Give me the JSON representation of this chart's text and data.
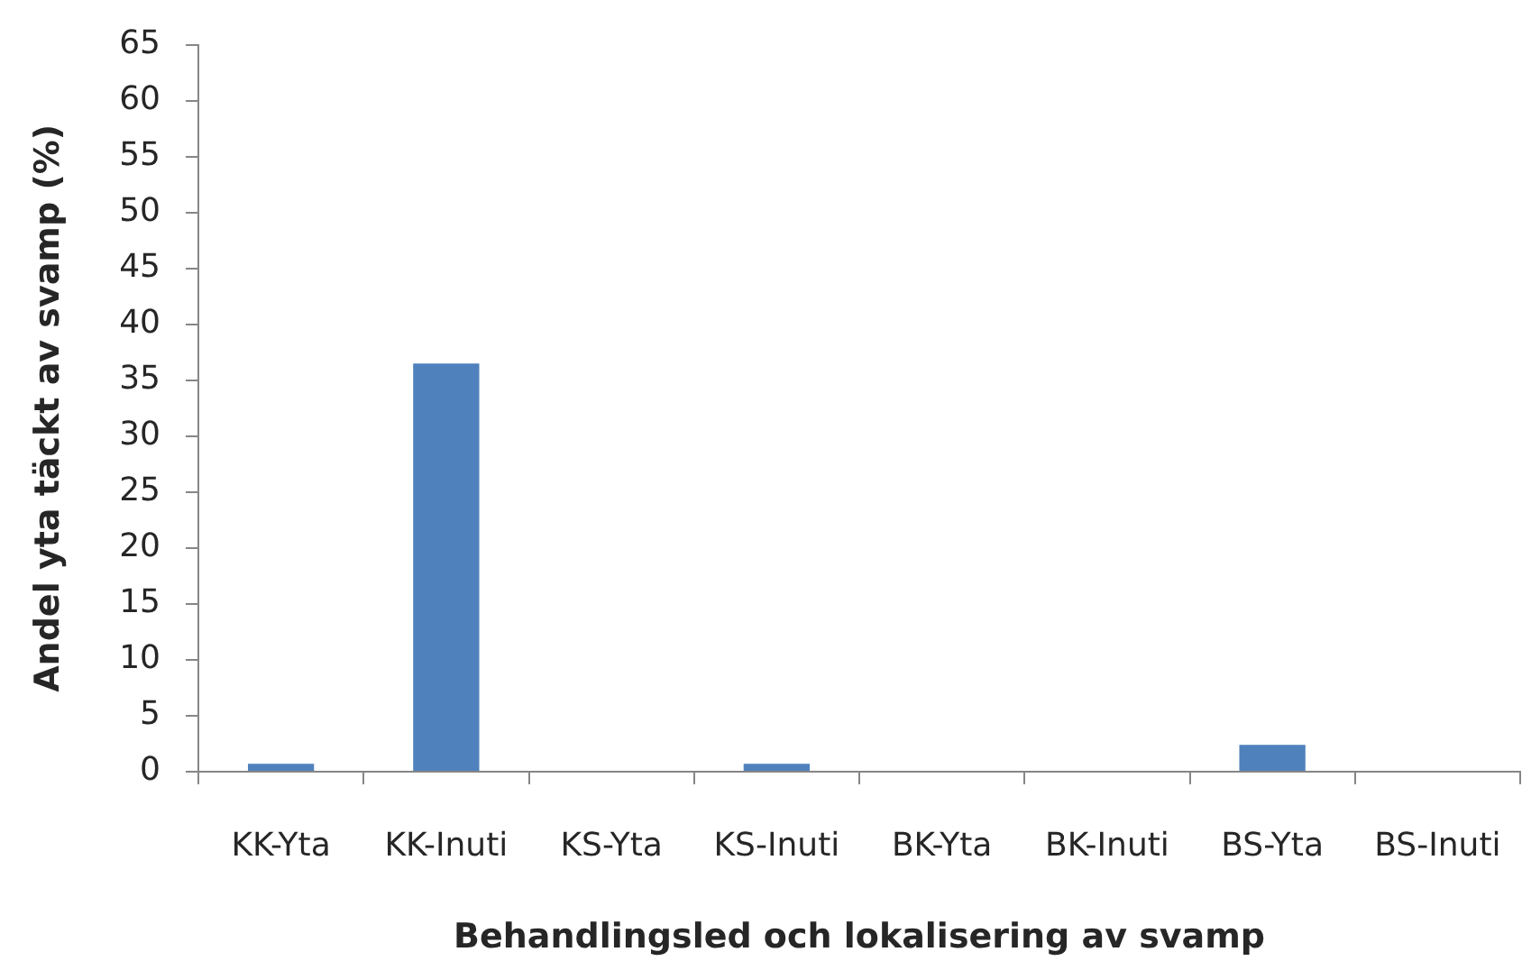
{
  "chart_data": {
    "type": "bar",
    "xlabel": "Behandlingsled och lokalisering av svamp",
    "ylabel": "Andel yta täckt av svamp (%)",
    "categories": [
      "KK-Yta",
      "KK-Inuti",
      "KS-Yta",
      "KS-Inuti",
      "BK-Yta",
      "BK-Inuti",
      "BS-Yta",
      "BS-Inuti"
    ],
    "values": [
      0.7,
      36.5,
      0,
      0.7,
      0,
      0,
      2.4,
      0
    ],
    "color": "#4f81bd",
    "ylim": [
      0,
      65
    ],
    "yticks": [
      0,
      5,
      10,
      15,
      20,
      25,
      30,
      35,
      40,
      45,
      50,
      55,
      60,
      65
    ]
  }
}
